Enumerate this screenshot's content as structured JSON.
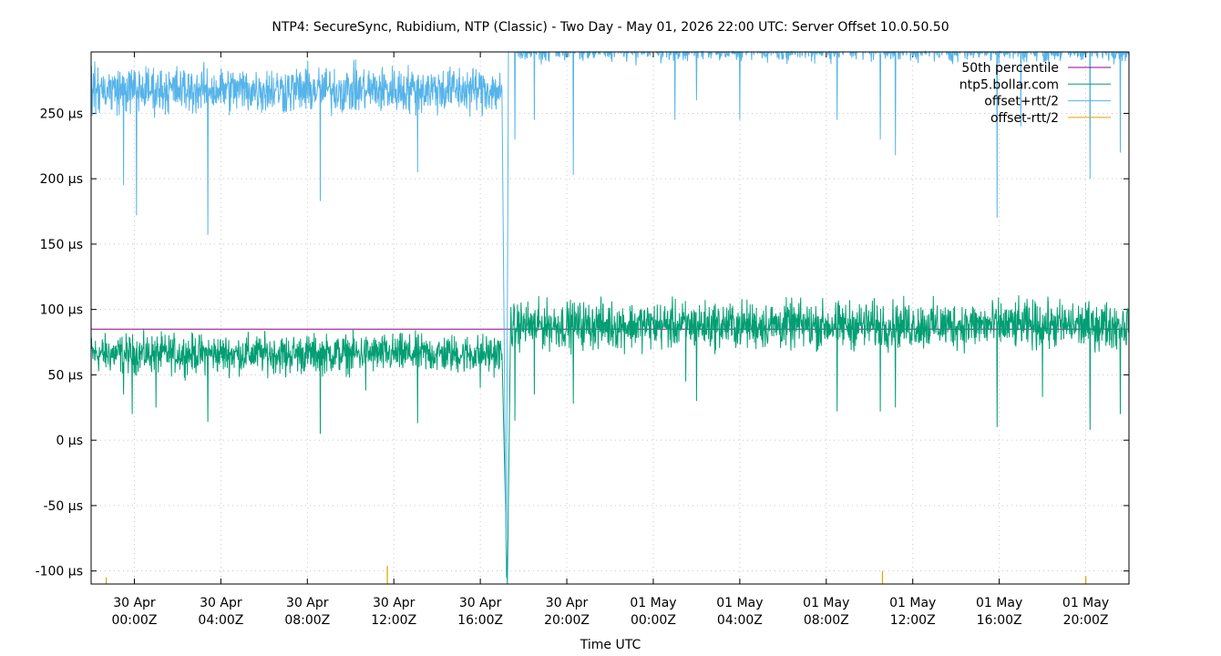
{
  "chart_data": {
    "type": "line",
    "title": "NTP4: SecureSync, Rubidium, NTP (Classic) - Two Day - May 01, 2026 22:00 UTC: Server Offset 10.0.50.50",
    "xlabel": "Time UTC",
    "ylabel": "",
    "x_unit": "hours since 29 Apr 22:00Z",
    "xlim": [
      0,
      48
    ],
    "ylim": [
      -110,
      297
    ],
    "y_ticks": [
      -100,
      -50,
      0,
      50,
      100,
      150,
      200,
      250
    ],
    "y_tick_labels": [
      "-100 µs",
      "-50 µs",
      "0 µs",
      "50 µs",
      "100 µs",
      "150 µs",
      "200 µs",
      "250 µs"
    ],
    "x_ticks": [
      2,
      6,
      10,
      14,
      18,
      22,
      26,
      30,
      34,
      38,
      42,
      46
    ],
    "x_tick_labels": [
      [
        "30 Apr",
        "00:00Z"
      ],
      [
        "30 Apr",
        "04:00Z"
      ],
      [
        "30 Apr",
        "08:00Z"
      ],
      [
        "30 Apr",
        "12:00Z"
      ],
      [
        "30 Apr",
        "16:00Z"
      ],
      [
        "30 Apr",
        "20:00Z"
      ],
      [
        "01 May",
        "00:00Z"
      ],
      [
        "01 May",
        "04:00Z"
      ],
      [
        "01 May",
        "08:00Z"
      ],
      [
        "01 May",
        "12:00Z"
      ],
      [
        "01 May",
        "16:00Z"
      ],
      [
        "01 May",
        "20:00Z"
      ]
    ],
    "grid": true,
    "legend_position": "top-right",
    "series": [
      {
        "name": "50th percentile",
        "color": "#94008f",
        "kind": "constant",
        "value": 85
      },
      {
        "name": "ntp5.bollar.com",
        "color": "#009e73",
        "kind": "noise",
        "segments": [
          {
            "x0": 0,
            "x1": 19.0,
            "base": 66,
            "spread": 9
          },
          {
            "x0": 19.4,
            "x1": 48,
            "base": 88,
            "spread": 11
          }
        ],
        "step_event": {
          "x": 19.25,
          "y": -110,
          "recovery": 85
        },
        "dips": [
          [
            1.5,
            35
          ],
          [
            1.9,
            20
          ],
          [
            3.0,
            25
          ],
          [
            5.4,
            14
          ],
          [
            9.0,
            48
          ],
          [
            10.6,
            5
          ],
          [
            12.7,
            38
          ],
          [
            15.1,
            13
          ],
          [
            18.0,
            40
          ],
          [
            19.6,
            15
          ],
          [
            20.5,
            35
          ],
          [
            22.3,
            28
          ],
          [
            27.5,
            45
          ],
          [
            28.0,
            30
          ],
          [
            34.5,
            22
          ],
          [
            36.5,
            22
          ],
          [
            37.2,
            25
          ],
          [
            41.9,
            10
          ],
          [
            44.0,
            33
          ],
          [
            46.2,
            8
          ],
          [
            47.6,
            20
          ]
        ]
      },
      {
        "name": "offset+rtt/2",
        "color": "#56b4e9",
        "kind": "noise",
        "segments": [
          {
            "x0": 0,
            "x1": 19.0,
            "base": 268,
            "spread": 11
          },
          {
            "x0": 19.4,
            "x1": 48,
            "base": 300,
            "spread": 6
          }
        ],
        "dips": [
          [
            1.5,
            195
          ],
          [
            2.1,
            172
          ],
          [
            5.4,
            157
          ],
          [
            10.6,
            183
          ],
          [
            15.1,
            205
          ],
          [
            19.6,
            230
          ],
          [
            20.5,
            245
          ],
          [
            22.3,
            203
          ],
          [
            27.0,
            245
          ],
          [
            28.0,
            260
          ],
          [
            30.0,
            245
          ],
          [
            34.5,
            245
          ],
          [
            36.5,
            230
          ],
          [
            37.2,
            218
          ],
          [
            41.9,
            170
          ],
          [
            43.0,
            240
          ],
          [
            46.2,
            200
          ],
          [
            47.6,
            220
          ]
        ]
      },
      {
        "name": "offset-rtt/2",
        "color": "#e69f00",
        "kind": "spikes",
        "baseline": -110,
        "points": [
          [
            0.7,
            -105
          ],
          [
            13.7,
            -96
          ],
          [
            36.6,
            -100
          ],
          [
            46.0,
            -104
          ]
        ]
      }
    ]
  }
}
